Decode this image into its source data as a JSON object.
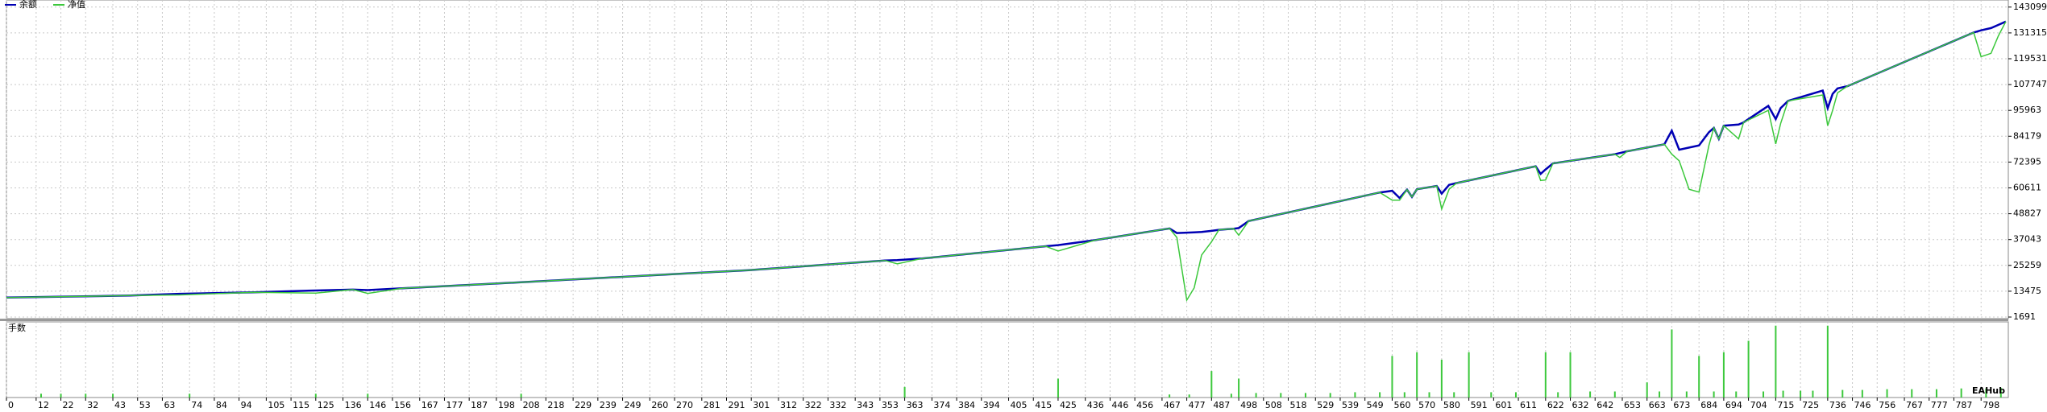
{
  "chart_data": [
    {
      "type": "line",
      "x": [
        0,
        50,
        70,
        100,
        125,
        140,
        146,
        160,
        200,
        300,
        355,
        360,
        370,
        420,
        425,
        440,
        470,
        473,
        477,
        480,
        483,
        487,
        490,
        496,
        498,
        502,
        555,
        560,
        563,
        566,
        568,
        570,
        578,
        580,
        583,
        586,
        618,
        620,
        622,
        625,
        650,
        652,
        655,
        670,
        673,
        676,
        680,
        684,
        688,
        690,
        692,
        694,
        700,
        702,
        712,
        715,
        717,
        720,
        734,
        736,
        738,
        740,
        744,
        795,
        798,
        802,
        805,
        808
      ],
      "series": [
        {
          "name": "余额",
          "color": "#0000b4",
          "values": [
            10600,
            11500,
            12300,
            13000,
            13800,
            14200,
            14000,
            14800,
            17100,
            23100,
            27500,
            27700,
            28400,
            34000,
            34500,
            36800,
            42100,
            40000,
            40200,
            40300,
            40500,
            41000,
            41500,
            42000,
            42300,
            45500,
            58500,
            59300,
            56000,
            59800,
            56500,
            60000,
            61500,
            58000,
            62000,
            62800,
            70500,
            67000,
            69000,
            71800,
            76000,
            76500,
            77300,
            80500,
            86700,
            78000,
            79000,
            80000,
            86000,
            88000,
            83000,
            89000,
            89500,
            90500,
            98000,
            92000,
            97000,
            100300,
            105000,
            97000,
            103500,
            106000,
            107000,
            131500,
            132500,
            133500,
            135000,
            136500
          ]
        },
        {
          "name": "净值",
          "color": "#3cc83c",
          "values": [
            10600,
            11500,
            11800,
            13000,
            12600,
            14200,
            12500,
            14800,
            17100,
            23100,
            27500,
            26000,
            28400,
            34000,
            31800,
            36800,
            42100,
            38000,
            9400,
            15000,
            30000,
            36000,
            41500,
            42000,
            39000,
            45500,
            58500,
            55000,
            55000,
            59800,
            56500,
            60000,
            61500,
            51000,
            60000,
            62800,
            70500,
            64000,
            64200,
            71800,
            76000,
            74500,
            77300,
            80500,
            76000,
            73000,
            60000,
            58700,
            80000,
            88000,
            83000,
            89000,
            83000,
            90500,
            96000,
            80700,
            90000,
            100300,
            103000,
            89000,
            96000,
            104000,
            107000,
            131500,
            120500,
            122000,
            130000,
            136500
          ]
        }
      ],
      "xlim": [
        0,
        809
      ],
      "ylim": [
        957,
        146328
      ],
      "xticks": [
        0,
        12,
        22,
        32,
        43,
        53,
        63,
        74,
        84,
        94,
        105,
        115,
        125,
        136,
        146,
        156,
        167,
        177,
        187,
        198,
        208,
        218,
        229,
        239,
        249,
        260,
        270,
        281,
        291,
        301,
        312,
        322,
        332,
        343,
        353,
        363,
        374,
        384,
        394,
        405,
        415,
        425,
        436,
        446,
        456,
        467,
        477,
        487,
        498,
        508,
        518,
        529,
        539,
        549,
        560,
        570,
        580,
        591,
        601,
        611,
        622,
        632,
        642,
        653,
        663,
        673,
        684,
        694,
        704,
        715,
        725,
        736,
        746,
        756,
        767,
        777,
        787,
        798
      ],
      "yticks": [
        1691,
        13475,
        25259,
        37043,
        48827,
        60611,
        72395,
        84179,
        95963,
        107747,
        119531,
        131315,
        143099
      ],
      "grid": true
    },
    {
      "type": "bar",
      "title": "手数",
      "color": "#3cc83c",
      "watermark": "EAHub",
      "x": [
        14,
        22,
        32,
        43,
        74,
        125,
        146,
        208,
        363,
        425,
        470,
        478,
        487,
        495,
        498,
        505,
        515,
        525,
        535,
        545,
        555,
        560,
        565,
        570,
        575,
        580,
        585,
        591,
        600,
        610,
        622,
        627,
        632,
        640,
        650,
        663,
        668,
        673,
        679,
        684,
        690,
        694,
        699,
        704,
        710,
        715,
        718,
        725,
        730,
        736,
        742,
        750,
        760,
        770,
        780,
        790,
        800,
        806
      ],
      "values": [
        5,
        5,
        5,
        5,
        5,
        5,
        5,
        5,
        14,
        25,
        4,
        4,
        35,
        5,
        25,
        6,
        6,
        6,
        6,
        7,
        7,
        55,
        7,
        60,
        7,
        50,
        7,
        60,
        7,
        7,
        60,
        7,
        60,
        8,
        8,
        20,
        8,
        90,
        8,
        55,
        8,
        60,
        8,
        75,
        8,
        95,
        9,
        9,
        9,
        95,
        10,
        10,
        11,
        11,
        11,
        12,
        12,
        13
      ],
      "xlim": [
        0,
        809
      ],
      "ylim": [
        0,
        100
      ]
    }
  ]
}
